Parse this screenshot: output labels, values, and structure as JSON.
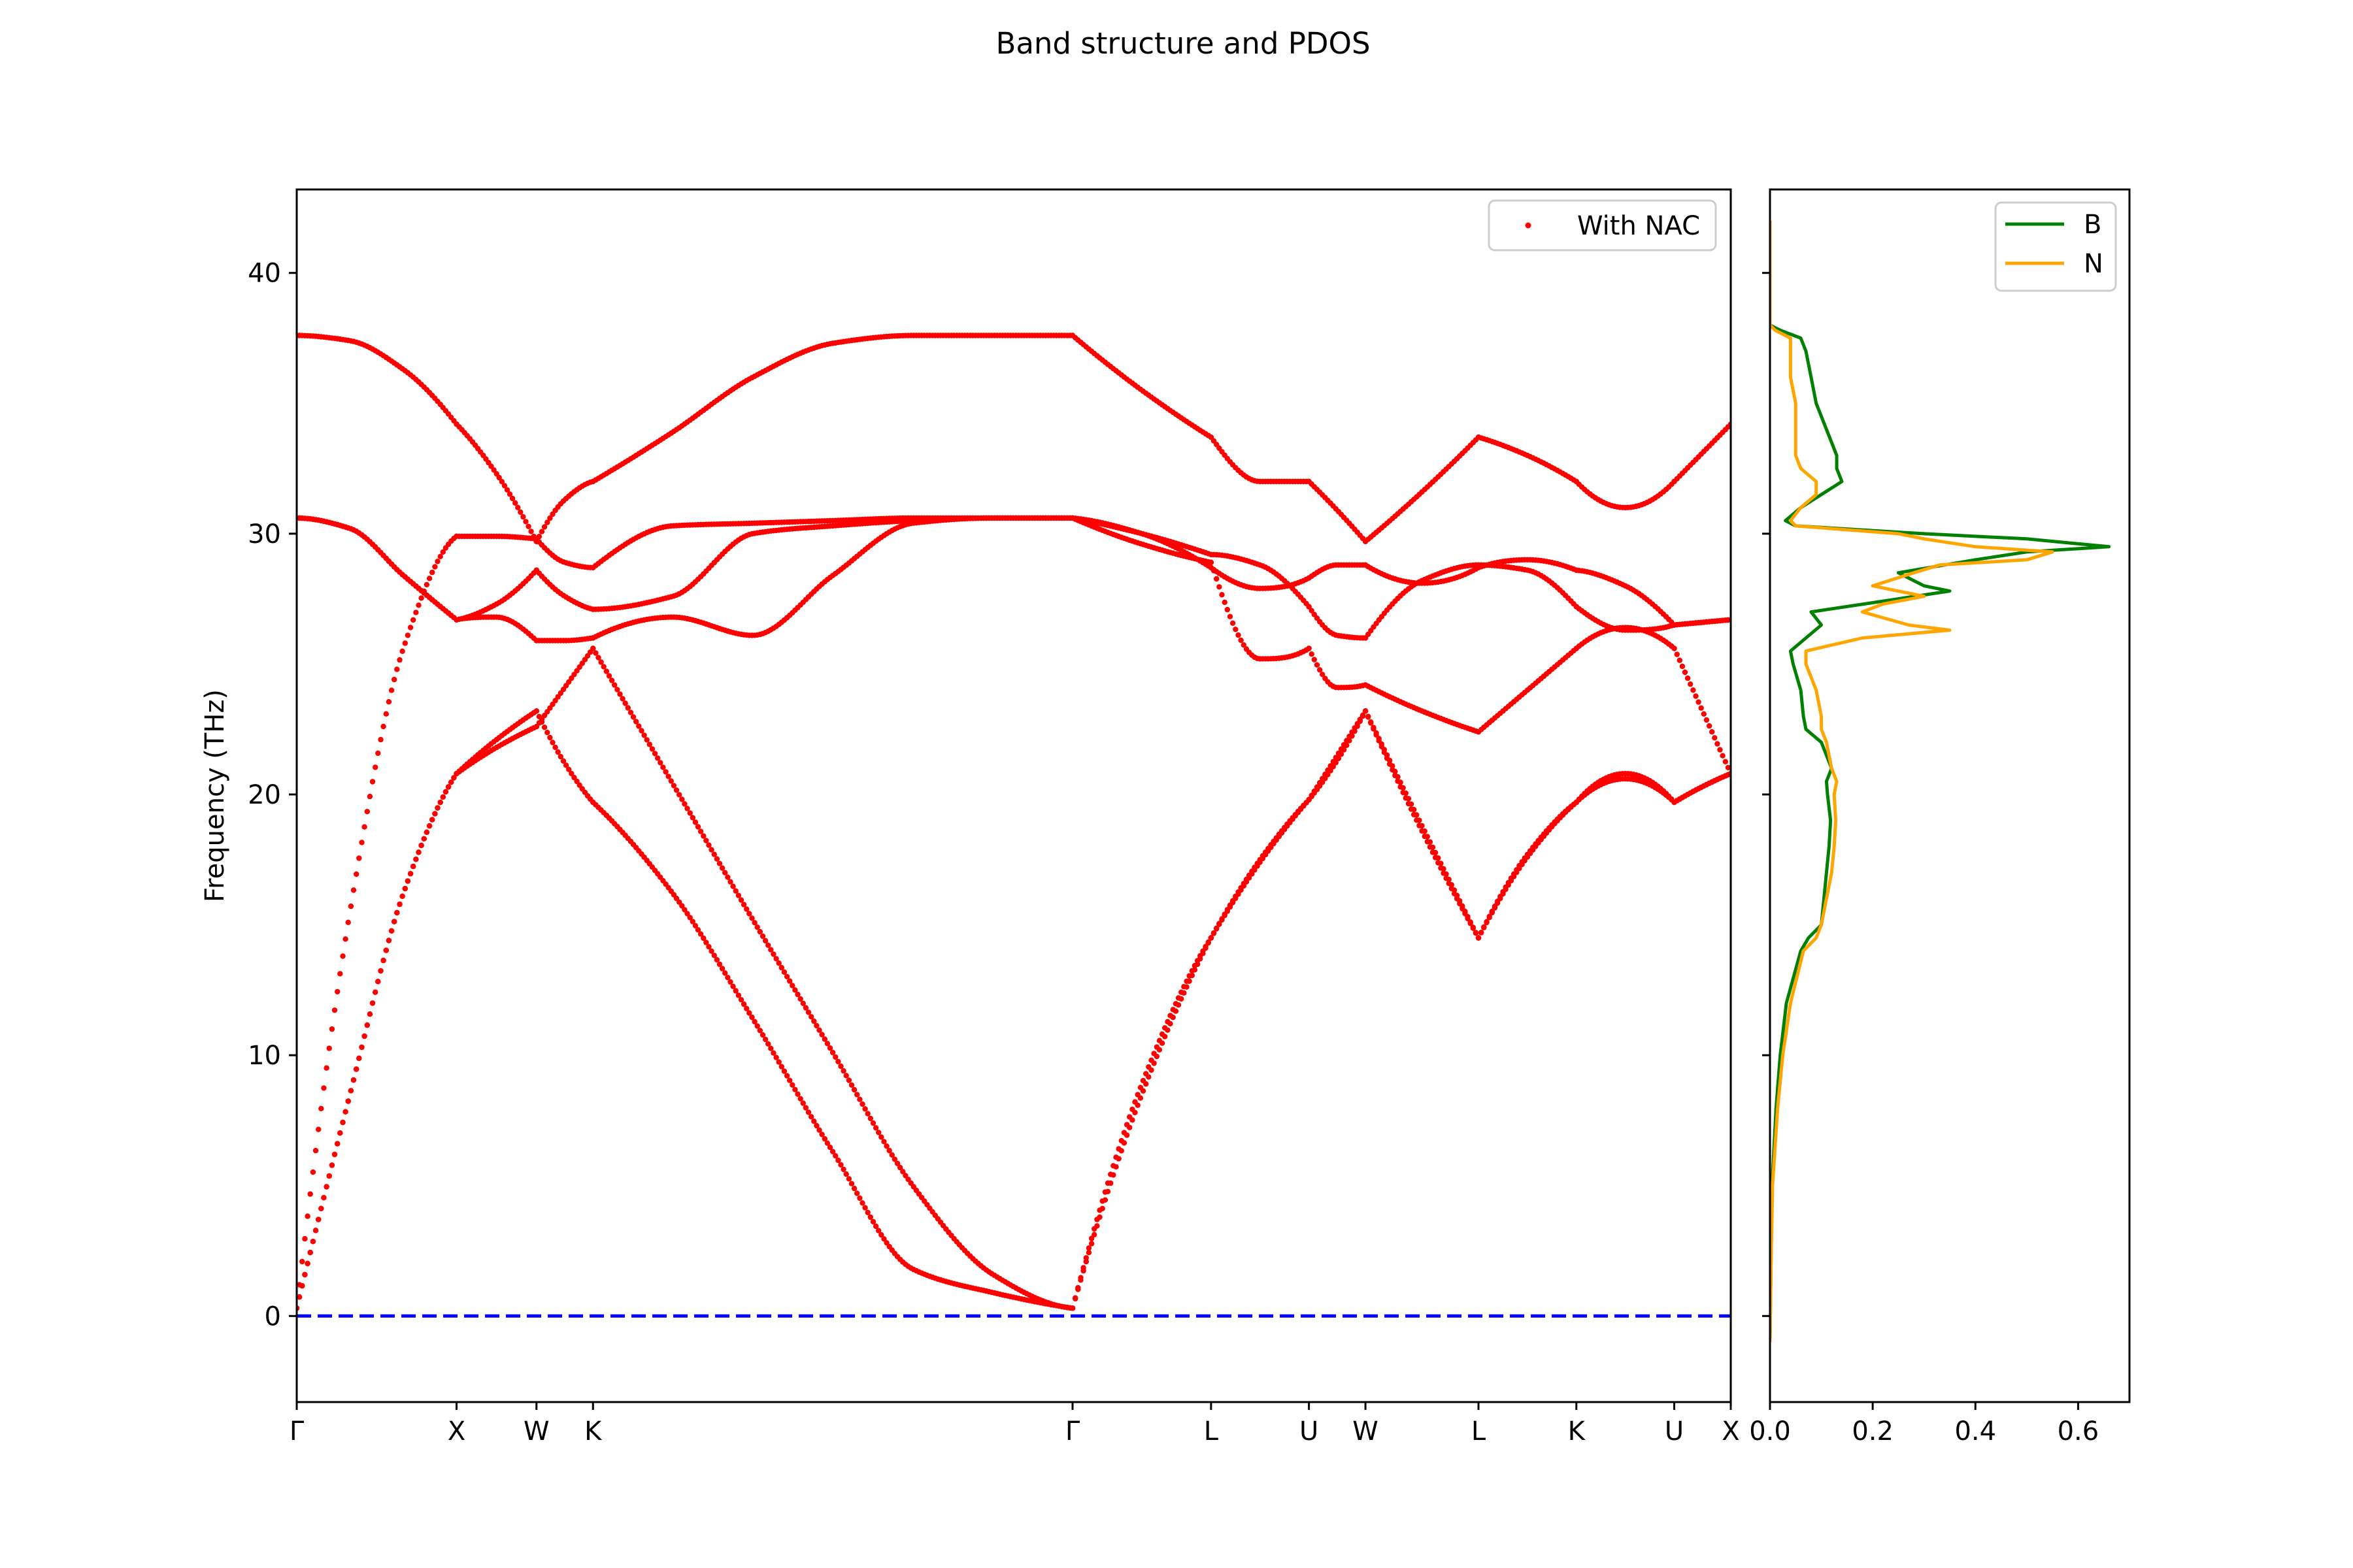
{
  "figure": {
    "title": "Band structure and PDOS"
  },
  "chart_data": [
    {
      "type": "scatter",
      "title": "",
      "xlabel": "",
      "ylabel": "Frequency (THz)",
      "ylim": [
        -3.3,
        43.2
      ],
      "y_ticks": [
        0,
        10,
        20,
        30,
        40
      ],
      "y_tick_labels": [
        "0",
        "10",
        "20",
        "30",
        "40"
      ],
      "x_ticks": [
        0,
        0.1414,
        0.2121,
        0.2621,
        0.6864,
        0.8089,
        0.8955,
        0.9455,
        1.0455,
        1.1321,
        1.2187,
        1.2687
      ],
      "x_tick_labels": [
        "Γ",
        "X",
        "W",
        "K",
        "Γ",
        "L",
        "U",
        "W",
        "L",
        "K",
        "U",
        "X"
      ],
      "xlim": [
        0,
        1.2687
      ],
      "legend": {
        "position": "top-right",
        "entries": [
          "With NAC"
        ]
      },
      "reference_line": {
        "y": 0,
        "color": "#0000ff",
        "style": "dashed"
      },
      "grid": false,
      "series": [
        {
          "name": "With NAC",
          "color": "#ff0000",
          "marker": "dot",
          "bands": [
            {
              "x": [
                0,
                0.0471,
                0.0943,
                0.1414,
                0.1767,
                0.2121,
                0.2371,
                0.2621,
                0.3328,
                0.4035,
                0.4743,
                0.545,
                0.6157,
                0.6864,
                0.7477,
                0.8089,
                0.8522,
                0.8955,
                0.9205,
                0.9455,
                0.9955,
                1.0455,
                1.0888,
                1.1321,
                1.1754,
                1.2187,
                1.2437,
                1.2687
              ],
              "y": [
                0.3,
                8.5,
                16.2,
                20.8,
                22.1,
                23.2,
                21.2,
                19.7,
                16.2,
                11.4,
                6.3,
                1.8,
                0.9,
                0.3,
                8.5,
                14.5,
                17.5,
                19.8,
                21.3,
                23.2,
                18.6,
                14.5,
                17.7,
                19.7,
                20.8,
                19.7,
                20.3,
                20.8
              ]
            },
            {
              "x": [
                0,
                0.0471,
                0.0943,
                0.1414,
                0.1767,
                0.2121,
                0.2371,
                0.2621,
                0.3328,
                0.4035,
                0.4743,
                0.545,
                0.6157,
                0.6864,
                0.7477,
                0.8089,
                0.8522,
                0.8955,
                0.9205,
                0.9455,
                0.9955,
                1.0455,
                1.0888,
                1.1321,
                1.1754,
                1.2187,
                1.2437,
                1.2687
              ],
              "y": [
                0.3,
                8.5,
                16.2,
                20.8,
                21.8,
                22.6,
                24.1,
                25.6,
                20.4,
                15.2,
                10.1,
                5.0,
                1.6,
                0.3,
                8.9,
                14.5,
                17.4,
                19.8,
                21.5,
                23.2,
                18.8,
                14.5,
                17.6,
                19.7,
                20.6,
                19.7,
                20.3,
                20.8
              ]
            },
            {
              "x": [
                0,
                0.0471,
                0.0943,
                0.1414,
                0.1767,
                0.2121,
                0.2371,
                0.2621,
                0.3328,
                0.4035,
                0.4743,
                0.545,
                0.6157,
                0.6864,
                0.7477,
                0.8089,
                0.8522,
                0.8955,
                0.9205,
                0.9455,
                0.9955,
                1.0455,
                1.0888,
                1.1321,
                1.1754,
                1.2187,
                1.2437,
                1.2687
              ],
              "y": [
                0.3,
                15.5,
                25.6,
                29.9,
                29.9,
                29.8,
                28.9,
                28.7,
                30.3,
                30.4,
                30.5,
                30.6,
                30.6,
                30.6,
                29.6,
                28.9,
                25.2,
                25.6,
                24.1,
                24.2,
                23.2,
                22.4,
                24.0,
                25.6,
                26.4,
                25.6,
                23.2,
                20.8
              ]
            },
            {
              "x": [
                0,
                0.0471,
                0.0943,
                0.1414,
                0.1767,
                0.2121,
                0.2371,
                0.2621,
                0.3328,
                0.4035,
                0.4743,
                0.545,
                0.6157,
                0.6864,
                0.7477,
                0.8089,
                0.8522,
                0.8955,
                0.9205,
                0.9455,
                0.9955,
                1.0455,
                1.0888,
                1.1321,
                1.1754,
                1.2187,
                1.2437,
                1.2687
              ],
              "y": [
                30.6,
                30.2,
                28.4,
                26.7,
                26.8,
                25.9,
                25.9,
                26.0,
                26.8,
                26.1,
                28.4,
                30.4,
                30.6,
                30.6,
                30.0,
                29.2,
                28.8,
                27.2,
                26.1,
                26.0,
                28.2,
                28.8,
                28.6,
                27.2,
                26.3,
                26.5,
                26.6,
                26.7
              ]
            },
            {
              "x": [
                0,
                0.0471,
                0.0943,
                0.1414,
                0.1767,
                0.2121,
                0.2371,
                0.2621,
                0.3328,
                0.4035,
                0.4743,
                0.545,
                0.6157,
                0.6864,
                0.7477,
                0.8089,
                0.8522,
                0.8955,
                0.9205,
                0.9455,
                0.9955,
                1.0455,
                1.0888,
                1.1321,
                1.1754,
                1.2187,
                1.2437,
                1.2687
              ],
              "y": [
                30.6,
                30.2,
                28.4,
                26.7,
                27.3,
                28.6,
                27.6,
                27.1,
                27.6,
                30.0,
                30.3,
                30.5,
                30.6,
                30.6,
                30.0,
                28.7,
                27.9,
                28.3,
                28.8,
                28.8,
                28.1,
                28.7,
                29.0,
                28.6,
                28.0,
                26.5,
                26.6,
                26.7
              ]
            },
            {
              "x": [
                0,
                0.0471,
                0.0943,
                0.1414,
                0.1767,
                0.2121,
                0.2371,
                0.2621,
                0.3328,
                0.4035,
                0.4743,
                0.545,
                0.6157,
                0.6864,
                0.7477,
                0.8089,
                0.8522,
                0.8955,
                0.9205,
                0.9455,
                0.9955,
                1.0455,
                1.0888,
                1.1321,
                1.1754,
                1.2187,
                1.2437,
                1.2687
              ],
              "y": [
                37.6,
                37.4,
                36.3,
                34.2,
                32.3,
                29.7,
                31.3,
                32.0,
                33.9,
                36.0,
                37.3,
                37.6,
                37.6,
                37.6,
                35.5,
                33.7,
                32.0,
                32.0,
                30.9,
                29.7,
                31.6,
                33.7,
                33.0,
                32.0,
                31.0,
                32.0,
                33.1,
                34.2
              ]
            }
          ]
        }
      ]
    },
    {
      "type": "line",
      "title": "",
      "xlabel": "",
      "ylabel": "",
      "xlim": [
        0,
        0.7
      ],
      "ylim": [
        -3.3,
        43.2
      ],
      "x_ticks": [
        0,
        0.2,
        0.4,
        0.6
      ],
      "x_tick_labels": [
        "0.0",
        "0.2",
        "0.4",
        "0.6"
      ],
      "legend": {
        "position": "top-right",
        "entries": [
          "B",
          "N"
        ]
      },
      "grid": false,
      "series": [
        {
          "name": "B",
          "color": "#008000",
          "y": [
            -1,
            2,
            5,
            8,
            10,
            12,
            14,
            14.5,
            15,
            16,
            17,
            18,
            19,
            20,
            20.5,
            21,
            22,
            22.5,
            23,
            24,
            25,
            25.5,
            26,
            26.5,
            27,
            27.5,
            27.8,
            28,
            28.5,
            29,
            29.3,
            29.5,
            29.8,
            30,
            30.3,
            30.5,
            31,
            31.5,
            32,
            32.5,
            33,
            34,
            35,
            36,
            37,
            37.5,
            37.8,
            38,
            40,
            42
          ],
          "x": [
            0,
            0.002,
            0.004,
            0.012,
            0.02,
            0.032,
            0.06,
            0.075,
            0.1,
            0.105,
            0.11,
            0.115,
            0.118,
            0.112,
            0.11,
            0.12,
            0.1,
            0.07,
            0.065,
            0.06,
            0.045,
            0.04,
            0.07,
            0.1,
            0.08,
            0.25,
            0.35,
            0.3,
            0.25,
            0.4,
            0.5,
            0.66,
            0.5,
            0.3,
            0.05,
            0.03,
            0.06,
            0.1,
            0.14,
            0.13,
            0.13,
            0.11,
            0.09,
            0.08,
            0.07,
            0.06,
            0.02,
            0,
            0,
            0
          ]
        },
        {
          "name": "N",
          "color": "#ffa500",
          "y": [
            -1,
            2,
            5,
            8,
            10,
            12,
            14,
            14.5,
            15,
            16,
            17,
            18,
            19,
            20,
            20.5,
            21,
            22,
            22.5,
            23,
            24,
            25,
            25.5,
            26,
            26.3,
            26.5,
            27,
            27.3,
            27.6,
            28,
            28.5,
            28.8,
            29,
            29.3,
            29.5,
            29.8,
            30,
            30.3,
            30.5,
            31,
            31.5,
            32,
            32.5,
            33,
            34,
            35,
            36,
            37,
            37.5,
            37.8,
            38,
            40,
            42
          ],
          "x": [
            0,
            0.002,
            0.005,
            0.015,
            0.025,
            0.04,
            0.065,
            0.09,
            0.1,
            0.11,
            0.12,
            0.125,
            0.128,
            0.125,
            0.13,
            0.12,
            0.11,
            0.1,
            0.1,
            0.09,
            0.07,
            0.07,
            0.18,
            0.35,
            0.27,
            0.18,
            0.22,
            0.3,
            0.2,
            0.28,
            0.33,
            0.5,
            0.55,
            0.4,
            0.3,
            0.25,
            0.05,
            0.04,
            0.06,
            0.09,
            0.09,
            0.06,
            0.05,
            0.05,
            0.05,
            0.04,
            0.04,
            0.04,
            0.01,
            0,
            0,
            0
          ]
        }
      ]
    }
  ]
}
